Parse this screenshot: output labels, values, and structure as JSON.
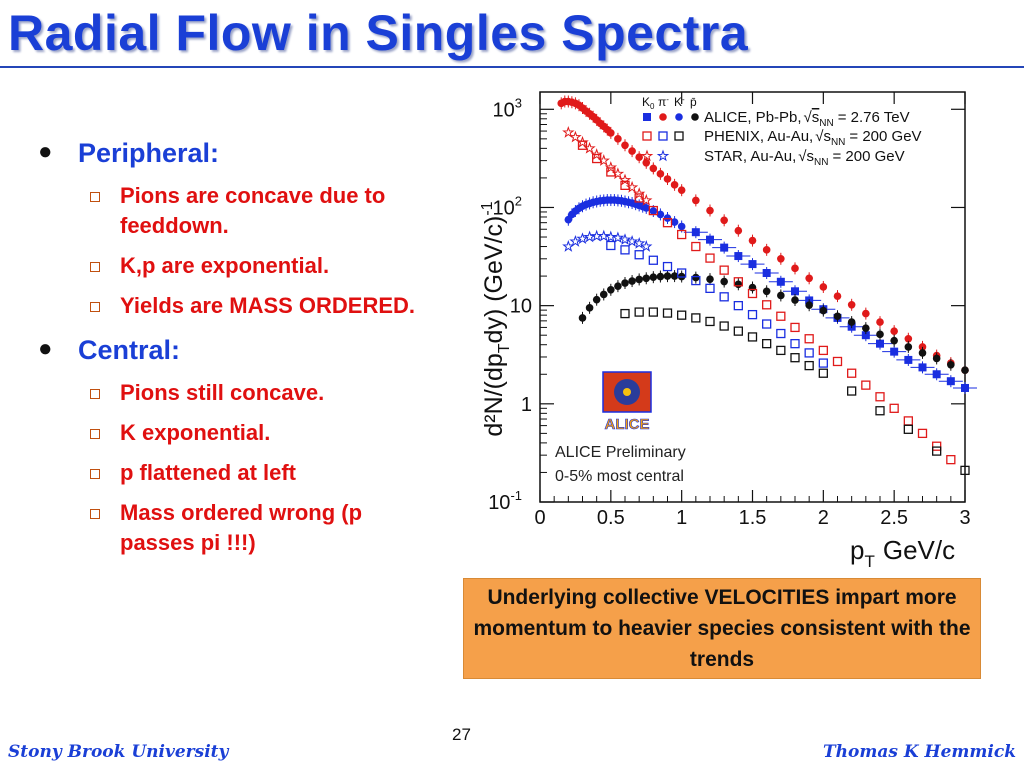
{
  "slide": {
    "title": "Radial Flow in Singles Spectra",
    "page_number": "27",
    "footer_left": "Stony Brook University",
    "footer_right": "Thomas K Hemmick",
    "callout": "Underlying collective VELOCITIES impart more momentum to heavier species consistent with the trends"
  },
  "bullets": [
    {
      "text": "Peripheral:",
      "subs": [
        "Pions are concave due to feeddown.",
        "K,p are exponential.",
        "Yields are MASS ORDERED."
      ]
    },
    {
      "text": "Central:",
      "subs": [
        "Pions still concave.",
        "K exponential.",
        "p flattened at left",
        "Mass ordered wrong (p passes pi !!!)"
      ]
    }
  ],
  "chart_data": {
    "type": "scatter",
    "xlabel": "p",
    "xlabel_sub": "T",
    "xlabel_unit": "GeV/c",
    "ylabel": "d²N/(dp",
    "ylabel_sub": "T",
    "ylabel_rest": "dy) (GeV/c)",
    "ylabel_sup": "-1",
    "x_scale": "linear",
    "y_scale": "log",
    "xlim": [
      0,
      3
    ],
    "ylim": [
      0.1,
      1500
    ],
    "x_ticks": [
      "0",
      "0.5",
      "1",
      "1.5",
      "2",
      "2.5",
      "3"
    ],
    "y_ticks": [
      {
        "value": 0.1,
        "label": "10",
        "sup": "-1"
      },
      {
        "value": 1,
        "label": "1",
        "sup": ""
      },
      {
        "value": 10,
        "label": "10",
        "sup": ""
      },
      {
        "value": 100,
        "label": "10",
        "sup": "2"
      },
      {
        "value": 1000,
        "label": "10",
        "sup": "3"
      }
    ],
    "legend_position": "top-right",
    "legend_species": [
      "K",
      "0",
      "π",
      "-",
      "K",
      "-",
      "p̄"
    ],
    "legend": [
      {
        "label": "ALICE, Pb-Pb,",
        "energy": "= 2.76 TeV",
        "markers": [
          "filled-square-blue",
          "filled-circle-red",
          "filled-circle-blue",
          "filled-circle-black"
        ]
      },
      {
        "label": "PHENIX, Au-Au,",
        "energy": "= 200 GeV",
        "markers": [
          "open-square-red",
          "open-square-blue",
          "open-square-black"
        ]
      },
      {
        "label": "STAR, Au-Au,",
        "energy": "= 200 GeV",
        "markers": [
          "star-red",
          "star-blue"
        ]
      }
    ],
    "sqrt_s": "s",
    "sqrt_sub": "NN",
    "annotation": [
      "ALICE Preliminary",
      "0-5% most central"
    ],
    "logo_text": "ALICE",
    "colors": {
      "red": "#e01a1a",
      "blue": "#1a2ee0",
      "black": "#111111",
      "axis": "#111111"
    },
    "series": [
      {
        "marker": "filled-circle-red",
        "color": "#e01a1a",
        "x": [
          0.15,
          0.175,
          0.2,
          0.225,
          0.25,
          0.275,
          0.3,
          0.325,
          0.35,
          0.375,
          0.4,
          0.425,
          0.45,
          0.475,
          0.5,
          0.55,
          0.6,
          0.65,
          0.7,
          0.75,
          0.8,
          0.85,
          0.9,
          0.95,
          1.0,
          1.1,
          1.2,
          1.3,
          1.4,
          1.5,
          1.6,
          1.7,
          1.8,
          1.9,
          2.0,
          2.1,
          2.2,
          2.3,
          2.4,
          2.5,
          2.6,
          2.7,
          2.8,
          2.9,
          3.0
        ],
        "y": [
          1150,
          1200,
          1200,
          1180,
          1150,
          1100,
          1030,
          960,
          900,
          840,
          780,
          720,
          670,
          620,
          575,
          500,
          430,
          375,
          325,
          285,
          250,
          220,
          195,
          170,
          150,
          118,
          93,
          74,
          58,
          46,
          37,
          30,
          24,
          19,
          15.5,
          12.5,
          10.2,
          8.3,
          6.8,
          5.5,
          4.6,
          3.8,
          3.1,
          2.6,
          2.2
        ]
      },
      {
        "marker": "filled-circle-blue",
        "color": "#1a2ee0",
        "x": [
          0.2,
          0.225,
          0.25,
          0.275,
          0.3,
          0.325,
          0.35,
          0.375,
          0.4,
          0.425,
          0.45,
          0.475,
          0.5,
          0.525,
          0.55,
          0.575,
          0.6,
          0.625,
          0.65,
          0.675,
          0.7,
          0.725,
          0.75,
          0.8,
          0.85,
          0.9,
          0.95,
          1.0
        ],
        "y": [
          75,
          85,
          92,
          98,
          103,
          107,
          110,
          113,
          115,
          117,
          118,
          119,
          119,
          119,
          118,
          117,
          115,
          113,
          111,
          108,
          105,
          102,
          99,
          92,
          85,
          78,
          71,
          64
        ]
      },
      {
        "marker": "filled-square-blue",
        "color": "#1a2ee0",
        "x": [
          1.1,
          1.2,
          1.3,
          1.4,
          1.5,
          1.6,
          1.7,
          1.8,
          1.9,
          2.0,
          2.1,
          2.2,
          2.3,
          2.4,
          2.5,
          2.6,
          2.7,
          2.8,
          2.9,
          3.0
        ],
        "y": [
          56,
          47,
          39,
          32,
          26.5,
          21.5,
          17.5,
          14,
          11.3,
          9.2,
          7.5,
          6.1,
          5.0,
          4.1,
          3.4,
          2.8,
          2.35,
          2.0,
          1.7,
          1.45
        ]
      },
      {
        "marker": "filled-circle-black",
        "color": "#111111",
        "x": [
          0.3,
          0.35,
          0.4,
          0.45,
          0.5,
          0.55,
          0.6,
          0.65,
          0.7,
          0.75,
          0.8,
          0.85,
          0.9,
          0.95,
          1.0,
          1.1,
          1.2,
          1.3,
          1.4,
          1.5,
          1.6,
          1.7,
          1.8,
          1.9,
          2.0,
          2.1,
          2.2,
          2.3,
          2.4,
          2.5,
          2.6,
          2.7,
          2.8,
          2.9,
          3.0
        ],
        "y": [
          7.5,
          9.5,
          11.5,
          13,
          14.5,
          15.8,
          17,
          17.8,
          18.5,
          19,
          19.5,
          19.8,
          20,
          20,
          19.8,
          19.3,
          18.6,
          17.6,
          16.5,
          15.3,
          14.0,
          12.7,
          11.4,
          10.1,
          8.9,
          7.8,
          6.8,
          5.9,
          5.1,
          4.4,
          3.8,
          3.3,
          2.9,
          2.5,
          2.2
        ]
      },
      {
        "marker": "open-square-red",
        "color": "#e01a1a",
        "x": [
          0.3,
          0.4,
          0.5,
          0.6,
          0.7,
          0.8,
          0.9,
          1.0,
          1.1,
          1.2,
          1.3,
          1.4,
          1.5,
          1.6,
          1.7,
          1.8,
          1.9,
          2.0,
          2.1,
          2.2,
          2.3,
          2.4,
          2.5,
          2.6,
          2.7,
          2.8,
          2.9
        ],
        "y": [
          430,
          315,
          230,
          168,
          125,
          93,
          70,
          53,
          40,
          30.5,
          23,
          17.5,
          13.3,
          10.2,
          7.8,
          6.0,
          4.6,
          3.5,
          2.7,
          2.05,
          1.55,
          1.18,
          0.9,
          0.67,
          0.5,
          0.37,
          0.27
        ]
      },
      {
        "marker": "open-square-blue",
        "color": "#1a2ee0",
        "x": [
          0.5,
          0.6,
          0.7,
          0.8,
          0.9,
          1.0,
          1.1,
          1.2,
          1.3,
          1.4,
          1.5,
          1.6,
          1.7,
          1.8,
          1.9,
          2.0
        ],
        "y": [
          41,
          37,
          33,
          29,
          25,
          21.5,
          18,
          15,
          12.3,
          10.0,
          8.1,
          6.5,
          5.2,
          4.1,
          3.3,
          2.6
        ]
      },
      {
        "marker": "open-square-black",
        "color": "#111111",
        "x": [
          0.6,
          0.7,
          0.8,
          0.9,
          1.0,
          1.1,
          1.2,
          1.3,
          1.4,
          1.5,
          1.6,
          1.7,
          1.8,
          1.9,
          2.0,
          2.2,
          2.4,
          2.6,
          2.8,
          3.0
        ],
        "y": [
          8.3,
          8.6,
          8.6,
          8.4,
          8.0,
          7.5,
          6.9,
          6.2,
          5.5,
          4.8,
          4.1,
          3.5,
          2.95,
          2.45,
          2.05,
          1.35,
          0.85,
          0.55,
          0.33,
          0.21
        ]
      },
      {
        "marker": "star-red",
        "color": "#e01a1a",
        "x": [
          0.2,
          0.25,
          0.3,
          0.35,
          0.4,
          0.45,
          0.5,
          0.55,
          0.6,
          0.65,
          0.7,
          0.75
        ],
        "y": [
          580,
          520,
          460,
          400,
          345,
          300,
          255,
          220,
          190,
          160,
          138,
          118
        ]
      },
      {
        "marker": "star-blue",
        "color": "#1a2ee0",
        "x": [
          0.2,
          0.25,
          0.3,
          0.35,
          0.4,
          0.45,
          0.5,
          0.55,
          0.6,
          0.65,
          0.7,
          0.75
        ],
        "y": [
          40,
          45,
          48,
          50,
          51,
          51,
          50,
          49,
          47,
          45,
          43,
          40
        ]
      }
    ]
  }
}
